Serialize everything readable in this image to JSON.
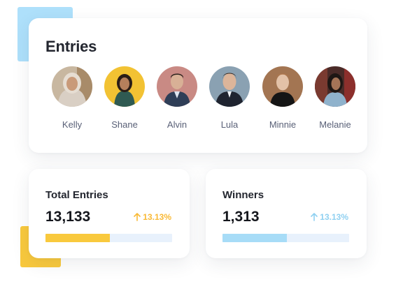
{
  "entries": {
    "title": "Entries",
    "people": [
      {
        "name": "Kelly"
      },
      {
        "name": "Shane"
      },
      {
        "name": "Alvin"
      },
      {
        "name": "Lula"
      },
      {
        "name": "Minnie"
      },
      {
        "name": "Melanie"
      }
    ]
  },
  "total_entries": {
    "title": "Total Entries",
    "value": "13,133",
    "change": "13.13%",
    "trend_icon": "arrow-up-icon",
    "progress": 0.51,
    "accent_color": "#f9c93d"
  },
  "winners": {
    "title": "Winners",
    "value": "1,313",
    "change": "13.13%",
    "trend_icon": "arrow-up-icon",
    "progress": 0.51,
    "accent_color": "#a7dcf7"
  }
}
